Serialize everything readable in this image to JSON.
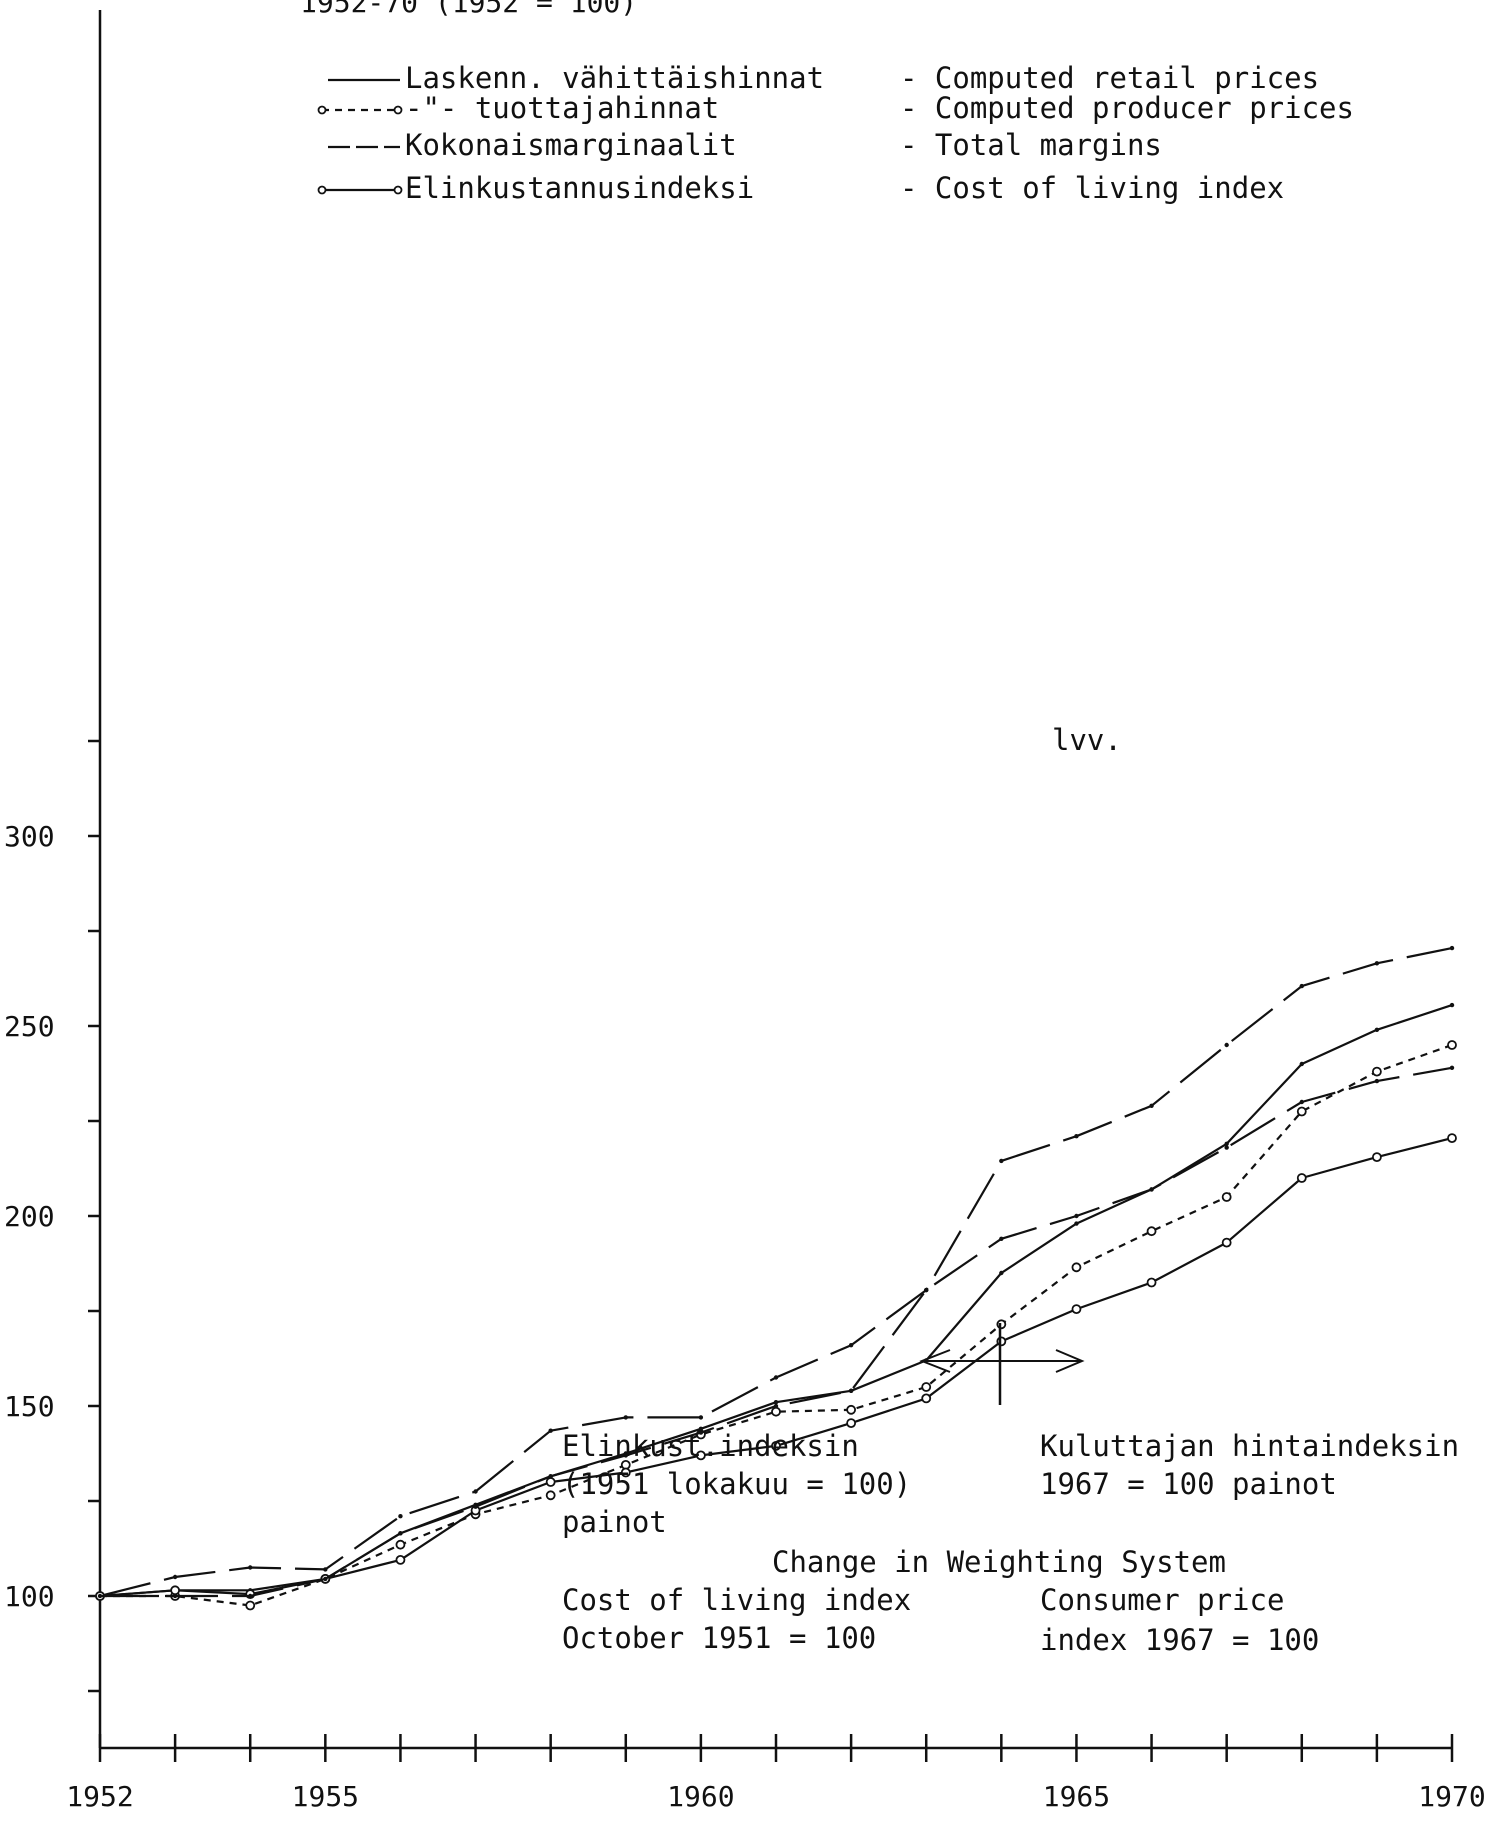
{
  "chart_data": {
    "type": "line",
    "title": "1952-70 (1952 = 100)",
    "xlabel": "",
    "ylabel": "",
    "xlim": [
      1952,
      1970
    ],
    "ylim": [
      80,
      320
    ],
    "grid": false,
    "legend_position": "top",
    "x_ticks": [
      1952,
      1955,
      1960,
      1965,
      1970
    ],
    "y_ticks": [
      100,
      150,
      200,
      250,
      300
    ],
    "x_tick_labels": [
      "1952",
      "1955",
      "1960",
      "1965",
      "1970"
    ],
    "y_tick_labels": [
      "100",
      "150",
      "200",
      "250",
      "300"
    ],
    "x": [
      1952,
      1953,
      1954,
      1955,
      1956,
      1957,
      1958,
      1959,
      1960,
      1961,
      1962,
      1963,
      1964,
      1965,
      1966,
      1967,
      1968,
      1969,
      1970
    ],
    "series": [
      {
        "name": "Laskenn. vähittäishinnat - Computed retail prices",
        "style": "solid",
        "values": [
          100,
          101.5,
          101.5,
          104.5,
          116.5,
          124,
          131.5,
          137.5,
          144,
          151,
          154,
          162,
          185,
          198,
          207,
          219,
          240,
          249,
          255.5
        ]
      },
      {
        "name": "-\"- tuottajahinnat - Computed producer prices",
        "style": "dashed-circle",
        "values": [
          100,
          100,
          97.5,
          104.5,
          113.5,
          121.5,
          126.5,
          134.5,
          142.5,
          148.5,
          149,
          155,
          171.5,
          186.5,
          196,
          205,
          227.5,
          238,
          245
        ]
      },
      {
        "name": "Kokonaismarginaalit - Total margins",
        "style": "longdash",
        "values": [
          100,
          105,
          107.5,
          107,
          121,
          127.5,
          143.5,
          147,
          147,
          157.5,
          166,
          180.5,
          214.5,
          221,
          229,
          245,
          260.5,
          266.5,
          270.5
        ]
      },
      {
        "name": "Elinkustannusindeksi - Cost of living index",
        "style": "solid-circle",
        "values": [
          100,
          101.5,
          100.5,
          104.5,
          109.5,
          122.5,
          130,
          132.5,
          137,
          139.5,
          145.5,
          152,
          167,
          175.5,
          182.5,
          193,
          210,
          215.5,
          220.5
        ]
      },
      {
        "name": "lvv.",
        "style": "longdash",
        "x": [
          1952,
          1953,
          1954,
          1955,
          1956,
          1957,
          1958,
          1959,
          1960,
          1961,
          1962,
          1963,
          1964,
          1965,
          1966,
          1967,
          1968,
          1969,
          1970
        ],
        "values": [
          100,
          100,
          100,
          104.5,
          116.5,
          123.5,
          131.5,
          137,
          143,
          150,
          154,
          180.5,
          194,
          200,
          207,
          218,
          230,
          235.5,
          239
        ]
      }
    ],
    "legend": [
      {
        "fi": "Laskenn. vähittäishinnat",
        "en": "- Computed retail prices",
        "style": "solid"
      },
      {
        "fi": "-\"-    tuottajahinnat",
        "en": "- Computed producer prices",
        "style": "dashed-circle"
      },
      {
        "fi": "Kokonaismarginaalit",
        "en": "- Total margins",
        "style": "longdash"
      },
      {
        "fi": "Elinkustannusindeksi",
        "en": "- Cost of living index",
        "style": "solid-circle"
      }
    ],
    "annotations": {
      "series_label": "lvv.",
      "old_weights": [
        "Elinkust.indeksin",
        "(1951 lokakuu = 100)",
        "painot"
      ],
      "new_weights": [
        "Kuluttajan hintaindeksin",
        "1967 = 100 painot"
      ],
      "change_heading": "Change in Weighting System",
      "old_weights_en": [
        "Cost of living index",
        "October 1951 = 100"
      ],
      "new_weights_en": [
        "Consumer price",
        "index  1967 = 100"
      ]
    }
  }
}
